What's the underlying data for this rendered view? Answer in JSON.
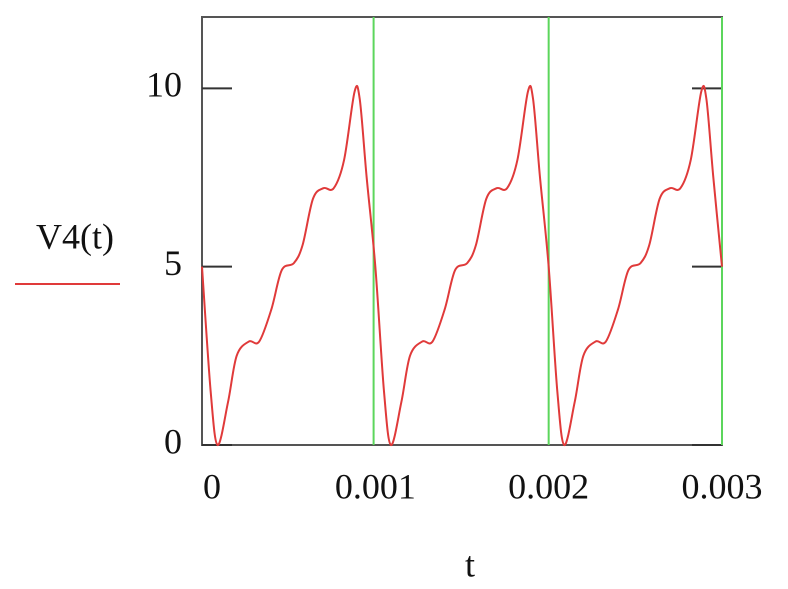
{
  "chart_data": {
    "type": "line",
    "x_label": "t",
    "x": [
      0,
      5e-05,
      9e-05,
      0.00015,
      0.0002,
      0.00027,
      0.00033,
      0.0004,
      0.00046,
      0.00053,
      0.00058,
      0.00064,
      0.0007,
      0.00076,
      0.00082,
      0.00088,
      0.00091,
      0.00095,
      0.001,
      0.00105,
      0.00109,
      0.00115,
      0.0012,
      0.00127,
      0.00133,
      0.0014,
      0.00146,
      0.00153,
      0.00158,
      0.00164,
      0.0017,
      0.00176,
      0.00182,
      0.00188,
      0.00191,
      0.00195,
      0.002,
      0.00205,
      0.00209,
      0.00215,
      0.0022,
      0.00227,
      0.00233,
      0.0024,
      0.00246,
      0.00253,
      0.00258,
      0.00264,
      0.0027,
      0.00276,
      0.00282,
      0.00288,
      0.00291,
      0.00295,
      0.003
    ],
    "series": [
      {
        "name": "V4(t)",
        "color": "#e03a3a",
        "values": [
          5,
          1.5,
          0,
          1.2,
          2.5,
          2.9,
          2.9,
          3.8,
          4.9,
          5.1,
          5.6,
          6.9,
          7.2,
          7.2,
          8.0,
          9.9,
          9.7,
          7.5,
          5,
          1.5,
          0,
          1.2,
          2.5,
          2.9,
          2.9,
          3.8,
          4.9,
          5.1,
          5.6,
          6.9,
          7.2,
          7.2,
          8.0,
          9.9,
          9.7,
          7.5,
          5,
          1.5,
          0,
          1.2,
          2.5,
          2.9,
          2.9,
          3.8,
          4.9,
          5.1,
          5.6,
          6.9,
          7.2,
          7.2,
          8.0,
          9.9,
          9.7,
          7.5,
          5
        ]
      }
    ],
    "markers": [
      0.00099,
      0.002,
      0.003
    ],
    "marker_color": "#5cd65c",
    "xlim": [
      0,
      0.003
    ],
    "ylim": [
      0,
      12
    ],
    "xticks": [
      0,
      0.001,
      0.002,
      0.003
    ],
    "yticks": [
      0,
      5,
      10
    ]
  }
}
